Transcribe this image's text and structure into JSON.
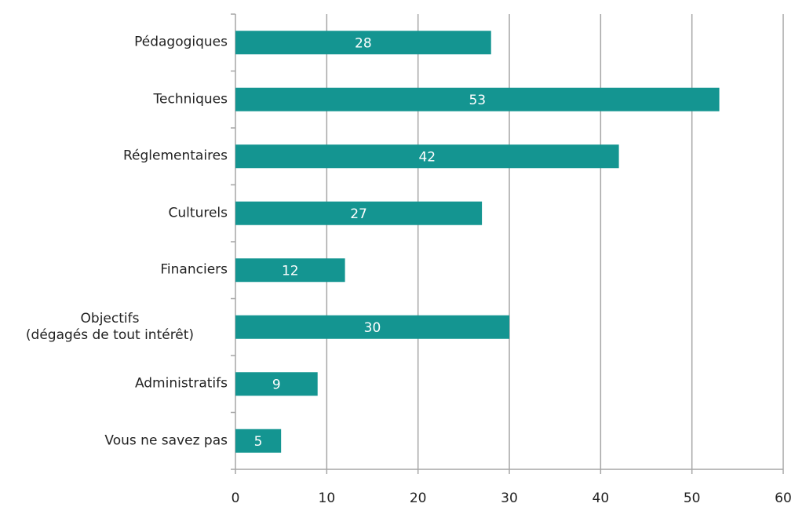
{
  "chart_data": {
    "type": "bar",
    "orientation": "horizontal",
    "categories": [
      "Pédagogiques",
      "Techniques",
      "Réglementaires",
      "Culturels",
      "Financiers",
      "Objectifs\n(dégagés de tout intérêt)",
      "Administratifs",
      "Vous ne savez pas"
    ],
    "values": [
      28,
      53,
      42,
      27,
      12,
      30,
      9,
      5
    ],
    "color": "#149591",
    "xlim": [
      0,
      60
    ],
    "xticks": [
      0,
      10,
      20,
      30,
      40,
      50,
      60
    ],
    "grid": true
  }
}
